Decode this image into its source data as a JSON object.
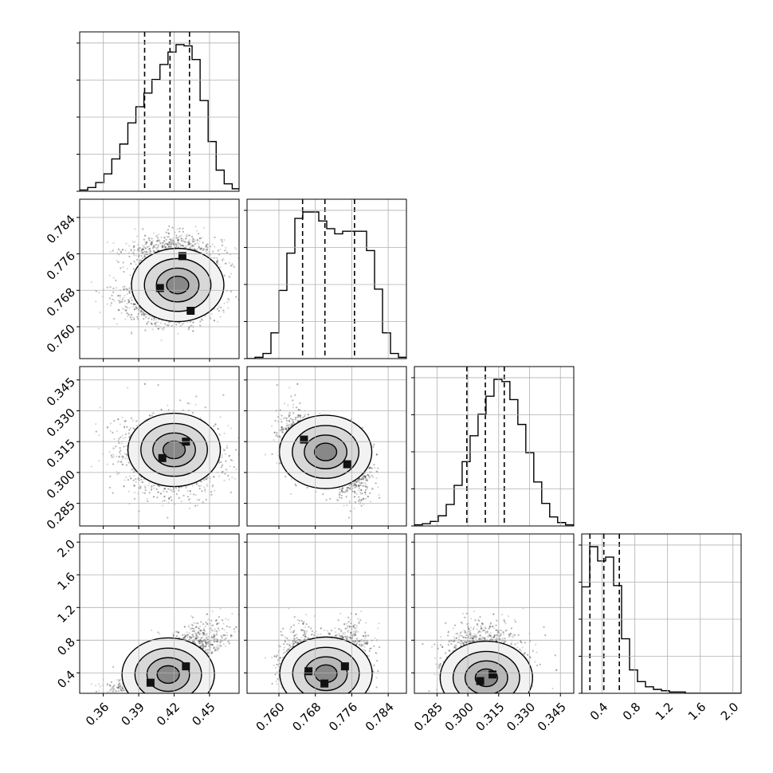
{
  "chart_data": {
    "type": "corner",
    "grid": true,
    "num_params": 4,
    "params": [
      {
        "range": [
          0.34,
          0.475
        ],
        "ticks": [
          0.36,
          0.39,
          0.42,
          0.45
        ],
        "tick_labels": [
          "0.36",
          "0.39",
          "0.42",
          "0.45"
        ],
        "quantiles": [
          0.395,
          0.4165,
          0.433
        ],
        "mean": 0.4165,
        "sd": 0.02
      },
      {
        "range": [
          0.753,
          0.788
        ],
        "ticks": [
          0.76,
          0.768,
          0.776,
          0.784
        ],
        "tick_labels": [
          "0.760",
          "0.768",
          "0.776",
          "0.784"
        ],
        "quantiles": [
          0.7652,
          0.7701,
          0.7766
        ],
        "modes": [
          {
            "mu": 0.7655,
            "sd": 0.0025,
            "w": 0.5
          },
          {
            "mu": 0.7752,
            "sd": 0.0025,
            "w": 0.5
          }
        ]
      },
      {
        "range": [
          0.274,
          0.3515
        ],
        "ticks": [
          0.285,
          0.3,
          0.315,
          0.33,
          0.345
        ],
        "tick_labels": [
          "0.285",
          "0.300",
          "0.315",
          "0.330",
          "0.345"
        ],
        "quantiles": [
          0.2995,
          0.3085,
          0.3177
        ],
        "mean": 0.3085,
        "sd": 0.0085
      },
      {
        "range": [
          0.15,
          2.1
        ],
        "ticks": [
          0.4,
          0.8,
          1.2,
          1.6,
          2.0
        ],
        "tick_labels": [
          "0.4",
          "0.8",
          "1.2",
          "1.6",
          "2.0"
        ],
        "quantiles": [
          0.25,
          0.42,
          0.61
        ]
      }
    ],
    "histograms": [
      {
        "param": 0,
        "edges_start": 0.34,
        "bin_width": 0.0068,
        "counts": [
          1,
          3,
          7,
          14,
          26,
          38,
          55,
          68,
          79,
          90,
          102,
          112,
          118,
          117,
          106,
          73,
          40,
          17,
          6,
          2,
          1
        ]
      },
      {
        "param": 1,
        "edges_start": 0.753,
        "bin_width": 0.00175,
        "counts": [
          0,
          1,
          4,
          20,
          53,
          82,
          109,
          114,
          114,
          107,
          101,
          97,
          99,
          99,
          99,
          84,
          54,
          20,
          4,
          1
        ]
      },
      {
        "param": 2,
        "edges_start": 0.274,
        "bin_width": 0.00387,
        "counts": [
          1,
          2,
          4,
          9,
          19,
          36,
          57,
          80,
          99,
          115,
          130,
          128,
          112,
          90,
          65,
          39,
          20,
          8,
          3,
          1
        ]
      },
      {
        "param": 3,
        "edges_start": 0.15,
        "bin_width": 0.0975,
        "counts": [
          82,
          113,
          102,
          105,
          83,
          42,
          18,
          9,
          5,
          3,
          2,
          1,
          1,
          0,
          0,
          0,
          0,
          0,
          0,
          0
        ]
      }
    ],
    "pairs": [
      {
        "x_param": 0,
        "y_param": 1,
        "density_peaks": [
          [
            0.408,
            0.7685
          ],
          [
            0.427,
            0.7755
          ],
          [
            0.434,
            0.7635
          ]
        ]
      },
      {
        "x_param": 0,
        "y_param": 2,
        "density_peaks": [
          [
            0.41,
            0.307
          ],
          [
            0.43,
            0.315
          ]
        ]
      },
      {
        "x_param": 1,
        "y_param": 2,
        "density_peaks": [
          [
            0.7655,
            0.316
          ],
          [
            0.775,
            0.304
          ]
        ]
      },
      {
        "x_param": 0,
        "y_param": 3,
        "density_peaks": [
          [
            0.4,
            0.28
          ],
          [
            0.43,
            0.48
          ]
        ]
      },
      {
        "x_param": 1,
        "y_param": 3,
        "density_peaks": [
          [
            0.7665,
            0.42
          ],
          [
            0.7745,
            0.48
          ],
          [
            0.77,
            0.27
          ]
        ]
      },
      {
        "x_param": 2,
        "y_param": 3,
        "density_peaks": [
          [
            0.306,
            0.3
          ],
          [
            0.312,
            0.38
          ]
        ]
      }
    ]
  }
}
